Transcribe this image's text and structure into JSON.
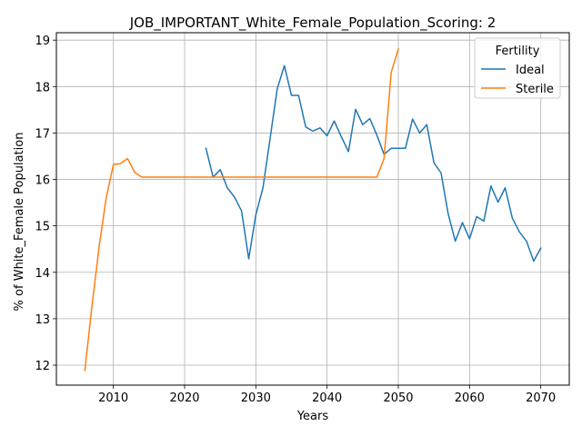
{
  "chart_data": {
    "type": "line",
    "title": "JOB_IMPORTANT_White_Female_Population_Scoring: 2",
    "xlabel": "Years",
    "ylabel": "% of White_Female Population",
    "xlim": [
      2002,
      2074
    ],
    "ylim": [
      11.57,
      19.16
    ],
    "xticks": [
      2010,
      2020,
      2030,
      2040,
      2050,
      2060,
      2070
    ],
    "yticks": [
      12,
      13,
      14,
      15,
      16,
      17,
      18,
      19
    ],
    "grid": true,
    "legend": {
      "title": "Fertility",
      "placement": "top-right"
    },
    "series": [
      {
        "name": "Ideal",
        "color": "#1f77b4",
        "x": [
          2023,
          2024,
          2025,
          2026,
          2027,
          2028,
          2029,
          2030,
          2031,
          2032,
          2033,
          2034,
          2035,
          2036,
          2037,
          2038,
          2039,
          2040,
          2041,
          2042,
          2043,
          2044,
          2045,
          2046,
          2047,
          2048,
          2049,
          2050,
          2051,
          2052,
          2053,
          2054,
          2055,
          2056,
          2057,
          2058,
          2059,
          2060,
          2061,
          2062,
          2063,
          2064,
          2065,
          2066,
          2067,
          2068,
          2069,
          2070
        ],
        "y": [
          16.67,
          16.05,
          16.21,
          15.82,
          15.62,
          15.32,
          14.29,
          15.24,
          15.82,
          16.88,
          17.95,
          18.45,
          17.81,
          17.81,
          17.13,
          17.04,
          17.11,
          16.94,
          17.26,
          16.92,
          16.6,
          17.51,
          17.18,
          17.31,
          16.95,
          16.54,
          16.67,
          16.67,
          16.67,
          17.3,
          17.0,
          17.18,
          16.36,
          16.14,
          15.26,
          14.67,
          15.07,
          14.72,
          15.2,
          15.1,
          15.86,
          15.51,
          15.82,
          15.17,
          14.87,
          14.67,
          14.24,
          14.52
        ]
      },
      {
        "name": "Sterile",
        "color": "#ff7f0e",
        "x": [
          2006,
          2007,
          2008,
          2009,
          2010,
          2011,
          2012,
          2013,
          2014,
          2015,
          2016,
          2017,
          2018,
          2019,
          2020,
          2021,
          2022,
          2023,
          2024,
          2025,
          2026,
          2027,
          2028,
          2029,
          2030,
          2031,
          2032,
          2033,
          2034,
          2035,
          2036,
          2037,
          2038,
          2039,
          2040,
          2041,
          2042,
          2043,
          2044,
          2045,
          2046,
          2047,
          2048,
          2049,
          2050
        ],
        "y": [
          11.89,
          13.28,
          14.55,
          15.61,
          16.32,
          16.34,
          16.45,
          16.15,
          16.05,
          16.05,
          16.05,
          16.05,
          16.05,
          16.05,
          16.05,
          16.05,
          16.05,
          16.05,
          16.05,
          16.05,
          16.05,
          16.05,
          16.05,
          16.05,
          16.05,
          16.05,
          16.05,
          16.05,
          16.05,
          16.05,
          16.05,
          16.05,
          16.05,
          16.05,
          16.05,
          16.05,
          16.05,
          16.05,
          16.05,
          16.05,
          16.05,
          16.05,
          16.45,
          18.3,
          18.81
        ]
      }
    ]
  }
}
